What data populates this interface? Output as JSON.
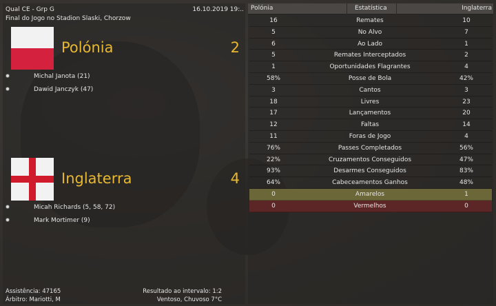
{
  "match": {
    "competition": "Qual CE - Grp G",
    "datetime": "16.10.2019 19:..",
    "venue": "Final do Jogo no Stadion Slaski, Chorzow",
    "home": {
      "name": "Polónia",
      "score": "2",
      "scorers": [
        "Michal Janota (21)",
        "Dawid Janczyk (47)"
      ]
    },
    "away": {
      "name": "Inglaterra",
      "score": "4",
      "scorers": [
        "Micah Richards (5, 58, 72)",
        "Mark Mortimer (9)"
      ]
    },
    "attendance": "Assistência: 47165",
    "referee": "Árbitro: Mariotti, M",
    "halftime": "Resultado ao intervalo: 1:2",
    "weather": "Ventoso, Chuvoso 7°C"
  },
  "stats": {
    "headers": {
      "home": "Polónia",
      "stat": "Estatística",
      "away": "Inglaterra"
    },
    "rows": [
      {
        "h": "16",
        "n": "Remates",
        "a": "10"
      },
      {
        "h": "5",
        "n": "No Alvo",
        "a": "7"
      },
      {
        "h": "6",
        "n": "Ao Lado",
        "a": "1"
      },
      {
        "h": "5",
        "n": "Remates Interceptados",
        "a": "2"
      },
      {
        "h": "1",
        "n": "Oportunidades Flagrantes",
        "a": "4"
      },
      {
        "h": "58%",
        "n": "Posse de Bola",
        "a": "42%"
      },
      {
        "h": "3",
        "n": "Cantos",
        "a": "3"
      },
      {
        "h": "18",
        "n": "Livres",
        "a": "23"
      },
      {
        "h": "17",
        "n": "Lançamentos",
        "a": "20"
      },
      {
        "h": "12",
        "n": "Faltas",
        "a": "14"
      },
      {
        "h": "11",
        "n": "Foras de Jogo",
        "a": "4"
      },
      {
        "h": "76%",
        "n": "Passes Completados",
        "a": "56%"
      },
      {
        "h": "22%",
        "n": "Cruzamentos Conseguidos",
        "a": "47%"
      },
      {
        "h": "93%",
        "n": "Desarmes Conseguidos",
        "a": "83%"
      },
      {
        "h": "64%",
        "n": "Cabeceamentos Ganhos",
        "a": "48%"
      },
      {
        "h": "0",
        "n": "Amarelos",
        "a": "1"
      },
      {
        "h": "0",
        "n": "Vermelhos",
        "a": "0"
      }
    ]
  },
  "colors": {
    "accent": "#e8b830",
    "yellow_row": "#6b6738",
    "red_row": "#5c2626"
  }
}
